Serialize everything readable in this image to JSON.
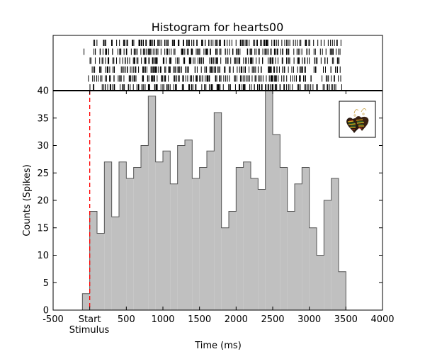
{
  "chart_data": {
    "type": "bar",
    "title": "Histogram for hearts00",
    "xlabel": "Time (ms)",
    "ylabel": "Counts (Spikes)",
    "xlim": [
      -500,
      4000
    ],
    "ylim": [
      0,
      40
    ],
    "x_ticks": [
      {
        "value": -500,
        "label": "-500"
      },
      {
        "value": 0,
        "label": "Start"
      },
      {
        "value": 500,
        "label": "500"
      },
      {
        "value": 1000,
        "label": "1000"
      },
      {
        "value": 1500,
        "label": "1500"
      },
      {
        "value": 2000,
        "label": "2000"
      },
      {
        "value": 2500,
        "label": "2500"
      },
      {
        "value": 3000,
        "label": "3000"
      },
      {
        "value": 3500,
        "label": "3500"
      },
      {
        "value": 4000,
        "label": "4000"
      }
    ],
    "x_annotation": "Stimulus",
    "y_ticks": [
      0,
      5,
      10,
      15,
      20,
      25,
      30,
      35,
      40
    ],
    "bin_width": 100,
    "bin_starts": [
      -100,
      0,
      100,
      200,
      300,
      400,
      500,
      600,
      700,
      800,
      900,
      1000,
      1100,
      1200,
      1300,
      1400,
      1500,
      1600,
      1700,
      1800,
      1900,
      2000,
      2100,
      2200,
      2300,
      2400,
      2500,
      2600,
      2700,
      2800,
      2900,
      3000,
      3100,
      3200,
      3300,
      3400
    ],
    "values": [
      3,
      18,
      14,
      27,
      17,
      27,
      24,
      26,
      30,
      39,
      27,
      29,
      23,
      30,
      31,
      24,
      26,
      29,
      36,
      15,
      18,
      26,
      27,
      24,
      22,
      40,
      32,
      26,
      18,
      23,
      26,
      15,
      10,
      20,
      24,
      7
    ],
    "stimulus_time": 0,
    "bar_color": "#c0c0c0",
    "edge_color": "#555555",
    "stimulus_line_color": "#ff0000",
    "raster": {
      "trial_count": 6,
      "xlim": [
        -500,
        4000
      ],
      "tick_color": "#000000"
    },
    "inset_icon": "hearts-earrings-icon"
  }
}
